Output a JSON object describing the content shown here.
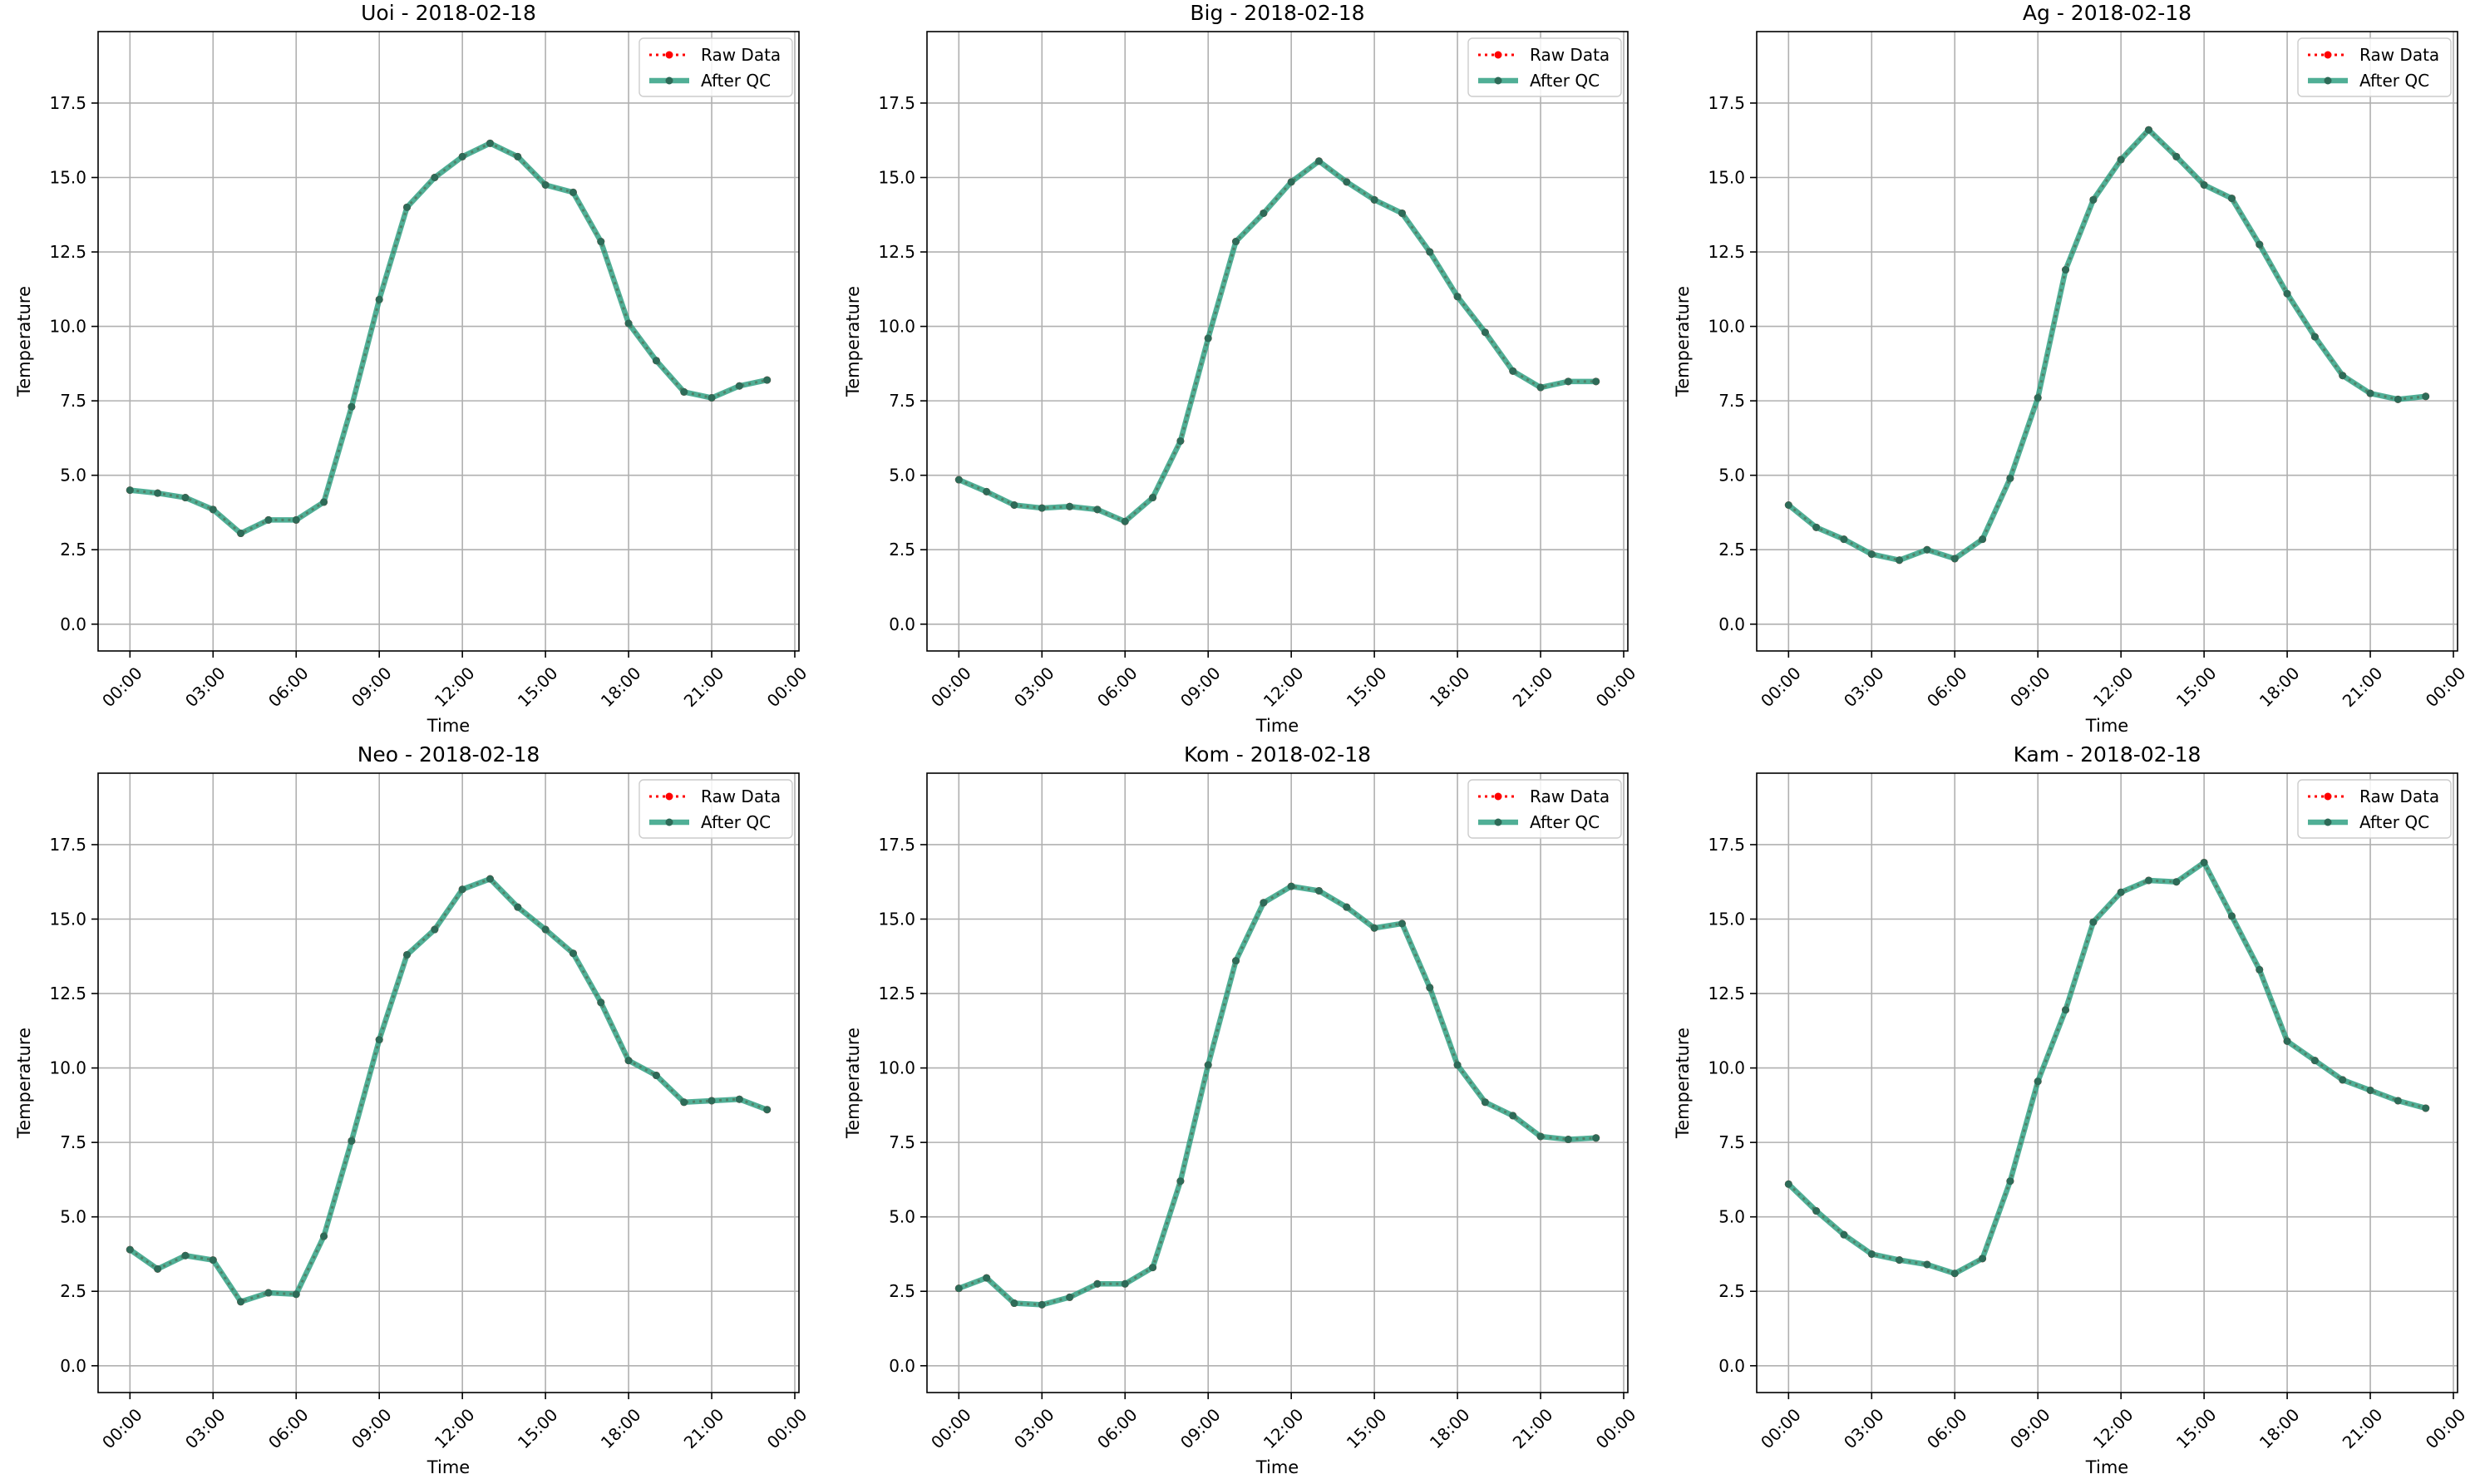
{
  "chart_data": [
    {
      "type": "line",
      "title": "Uoi - 2018-02-18",
      "xlabel": "Time",
      "ylabel": "Temperature",
      "x": [
        "00:00",
        "01:00",
        "02:00",
        "03:00",
        "04:00",
        "05:00",
        "06:00",
        "07:00",
        "08:00",
        "09:00",
        "10:00",
        "11:00",
        "12:00",
        "13:00",
        "14:00",
        "15:00",
        "16:00",
        "17:00",
        "18:00",
        "19:00",
        "20:00",
        "21:00",
        "22:00",
        "23:00"
      ],
      "x_ticks": [
        "00:00",
        "03:00",
        "06:00",
        "09:00",
        "12:00",
        "15:00",
        "18:00",
        "21:00",
        "00:00"
      ],
      "ylim": [
        -0.9,
        19.9
      ],
      "y_ticks": [
        "0.0",
        "2.5",
        "5.0",
        "7.5",
        "10.0",
        "12.5",
        "15.0",
        "17.5"
      ],
      "grid": true,
      "legend_position": "top-right",
      "series": [
        {
          "name": "Raw Data",
          "color": "#ff0000",
          "values": [
            4.5,
            4.4,
            4.25,
            3.85,
            3.05,
            3.5,
            3.5,
            4.1,
            7.3,
            10.9,
            14.0,
            15.0,
            15.7,
            16.15,
            15.7,
            14.75,
            14.5,
            12.85,
            10.1,
            8.85,
            7.8,
            7.6,
            8.0,
            8.2
          ]
        },
        {
          "name": "After QC",
          "color": "#2a9d7f",
          "values": [
            4.5,
            4.4,
            4.25,
            3.85,
            3.05,
            3.5,
            3.5,
            4.1,
            7.3,
            10.9,
            14.0,
            15.0,
            15.7,
            16.15,
            15.7,
            14.75,
            14.5,
            12.85,
            10.1,
            8.85,
            7.8,
            7.6,
            8.0,
            8.2
          ]
        }
      ]
    },
    {
      "type": "line",
      "title": "Big - 2018-02-18",
      "xlabel": "Time",
      "ylabel": "Temperature",
      "x": [
        "00:00",
        "01:00",
        "02:00",
        "03:00",
        "04:00",
        "05:00",
        "06:00",
        "07:00",
        "08:00",
        "09:00",
        "10:00",
        "11:00",
        "12:00",
        "13:00",
        "14:00",
        "15:00",
        "16:00",
        "17:00",
        "18:00",
        "19:00",
        "20:00",
        "21:00",
        "22:00",
        "23:00"
      ],
      "x_ticks": [
        "00:00",
        "03:00",
        "06:00",
        "09:00",
        "12:00",
        "15:00",
        "18:00",
        "21:00",
        "00:00"
      ],
      "ylim": [
        -0.9,
        19.9
      ],
      "y_ticks": [
        "0.0",
        "2.5",
        "5.0",
        "7.5",
        "10.0",
        "12.5",
        "15.0",
        "17.5"
      ],
      "grid": true,
      "legend_position": "top-right",
      "series": [
        {
          "name": "Raw Data",
          "color": "#ff0000",
          "values": [
            4.85,
            4.45,
            4.0,
            3.9,
            3.95,
            3.85,
            3.45,
            4.25,
            6.15,
            9.6,
            12.85,
            13.8,
            14.85,
            15.55,
            14.85,
            14.25,
            13.8,
            12.5,
            11.0,
            9.8,
            8.5,
            7.95,
            8.15,
            8.15
          ]
        },
        {
          "name": "After QC",
          "color": "#2a9d7f",
          "values": [
            4.85,
            4.45,
            4.0,
            3.9,
            3.95,
            3.85,
            3.45,
            4.25,
            6.15,
            9.6,
            12.85,
            13.8,
            14.85,
            15.55,
            14.85,
            14.25,
            13.8,
            12.5,
            11.0,
            9.8,
            8.5,
            7.95,
            8.15,
            8.15
          ]
        }
      ]
    },
    {
      "type": "line",
      "title": "Ag - 2018-02-18",
      "xlabel": "Time",
      "ylabel": "Temperature",
      "x": [
        "00:00",
        "01:00",
        "02:00",
        "03:00",
        "04:00",
        "05:00",
        "06:00",
        "07:00",
        "08:00",
        "09:00",
        "10:00",
        "11:00",
        "12:00",
        "13:00",
        "14:00",
        "15:00",
        "16:00",
        "17:00",
        "18:00",
        "19:00",
        "20:00",
        "21:00",
        "22:00",
        "23:00"
      ],
      "x_ticks": [
        "00:00",
        "03:00",
        "06:00",
        "09:00",
        "12:00",
        "15:00",
        "18:00",
        "21:00",
        "00:00"
      ],
      "ylim": [
        -0.9,
        19.9
      ],
      "y_ticks": [
        "0.0",
        "2.5",
        "5.0",
        "7.5",
        "10.0",
        "12.5",
        "15.0",
        "17.5"
      ],
      "grid": true,
      "legend_position": "top-right",
      "series": [
        {
          "name": "Raw Data",
          "color": "#ff0000",
          "values": [
            4.0,
            3.25,
            2.85,
            2.35,
            2.15,
            2.5,
            2.2,
            2.85,
            4.9,
            7.6,
            11.9,
            14.25,
            15.6,
            16.6,
            15.7,
            14.75,
            14.3,
            12.75,
            11.1,
            9.65,
            8.35,
            7.75,
            7.55,
            7.65
          ]
        },
        {
          "name": "After QC",
          "color": "#2a9d7f",
          "values": [
            4.0,
            3.25,
            2.85,
            2.35,
            2.15,
            2.5,
            2.2,
            2.85,
            4.9,
            7.6,
            11.9,
            14.25,
            15.6,
            16.6,
            15.7,
            14.75,
            14.3,
            12.75,
            11.1,
            9.65,
            8.35,
            7.75,
            7.55,
            7.65
          ]
        }
      ]
    },
    {
      "type": "line",
      "title": "Neo - 2018-02-18",
      "xlabel": "Time",
      "ylabel": "Temperature",
      "x": [
        "00:00",
        "01:00",
        "02:00",
        "03:00",
        "04:00",
        "05:00",
        "06:00",
        "07:00",
        "08:00",
        "09:00",
        "10:00",
        "11:00",
        "12:00",
        "13:00",
        "14:00",
        "15:00",
        "16:00",
        "17:00",
        "18:00",
        "19:00",
        "20:00",
        "21:00",
        "22:00",
        "23:00"
      ],
      "x_ticks": [
        "00:00",
        "03:00",
        "06:00",
        "09:00",
        "12:00",
        "15:00",
        "18:00",
        "21:00",
        "00:00"
      ],
      "ylim": [
        -0.9,
        19.9
      ],
      "y_ticks": [
        "0.0",
        "2.5",
        "5.0",
        "7.5",
        "10.0",
        "12.5",
        "15.0",
        "17.5"
      ],
      "grid": true,
      "legend_position": "top-right",
      "series": [
        {
          "name": "Raw Data",
          "color": "#ff0000",
          "values": [
            3.9,
            3.25,
            3.7,
            3.55,
            2.15,
            2.45,
            2.4,
            4.35,
            7.55,
            10.95,
            13.8,
            14.65,
            16.0,
            16.35,
            15.4,
            14.65,
            13.85,
            12.2,
            10.25,
            9.75,
            8.85,
            8.9,
            8.95,
            8.6
          ]
        },
        {
          "name": "After QC",
          "color": "#2a9d7f",
          "values": [
            3.9,
            3.25,
            3.7,
            3.55,
            2.15,
            2.45,
            2.4,
            4.35,
            7.55,
            10.95,
            13.8,
            14.65,
            16.0,
            16.35,
            15.4,
            14.65,
            13.85,
            12.2,
            10.25,
            9.75,
            8.85,
            8.9,
            8.95,
            8.6
          ]
        }
      ]
    },
    {
      "type": "line",
      "title": "Kom - 2018-02-18",
      "xlabel": "Time",
      "ylabel": "Temperature",
      "x": [
        "00:00",
        "01:00",
        "02:00",
        "03:00",
        "04:00",
        "05:00",
        "06:00",
        "07:00",
        "08:00",
        "09:00",
        "10:00",
        "11:00",
        "12:00",
        "13:00",
        "14:00",
        "15:00",
        "16:00",
        "17:00",
        "18:00",
        "19:00",
        "20:00",
        "21:00",
        "22:00",
        "23:00"
      ],
      "x_ticks": [
        "00:00",
        "03:00",
        "06:00",
        "09:00",
        "12:00",
        "15:00",
        "18:00",
        "21:00",
        "00:00"
      ],
      "ylim": [
        -0.9,
        19.9
      ],
      "y_ticks": [
        "0.0",
        "2.5",
        "5.0",
        "7.5",
        "10.0",
        "12.5",
        "15.0",
        "17.5"
      ],
      "grid": true,
      "legend_position": "top-right",
      "series": [
        {
          "name": "Raw Data",
          "color": "#ff0000",
          "values": [
            2.6,
            2.95,
            2.1,
            2.05,
            2.3,
            2.75,
            2.75,
            3.3,
            6.2,
            10.1,
            13.6,
            15.55,
            16.1,
            15.95,
            15.4,
            14.7,
            14.85,
            12.7,
            10.1,
            8.85,
            8.4,
            7.7,
            7.6,
            7.65
          ]
        },
        {
          "name": "After QC",
          "color": "#2a9d7f",
          "values": [
            2.6,
            2.95,
            2.1,
            2.05,
            2.3,
            2.75,
            2.75,
            3.3,
            6.2,
            10.1,
            13.6,
            15.55,
            16.1,
            15.95,
            15.4,
            14.7,
            14.85,
            12.7,
            10.1,
            8.85,
            8.4,
            7.7,
            7.6,
            7.65
          ]
        }
      ]
    },
    {
      "type": "line",
      "title": "Kam - 2018-02-18",
      "xlabel": "Time",
      "ylabel": "Temperature",
      "x": [
        "00:00",
        "01:00",
        "02:00",
        "03:00",
        "04:00",
        "05:00",
        "06:00",
        "07:00",
        "08:00",
        "09:00",
        "10:00",
        "11:00",
        "12:00",
        "13:00",
        "14:00",
        "15:00",
        "16:00",
        "17:00",
        "18:00",
        "19:00",
        "20:00",
        "21:00",
        "22:00",
        "23:00"
      ],
      "x_ticks": [
        "00:00",
        "03:00",
        "06:00",
        "09:00",
        "12:00",
        "15:00",
        "18:00",
        "21:00",
        "00:00"
      ],
      "ylim": [
        -0.9,
        19.9
      ],
      "y_ticks": [
        "0.0",
        "2.5",
        "5.0",
        "7.5",
        "10.0",
        "12.5",
        "15.0",
        "17.5"
      ],
      "grid": true,
      "legend_position": "top-right",
      "series": [
        {
          "name": "Raw Data",
          "color": "#ff0000",
          "values": [
            6.1,
            5.2,
            4.4,
            3.75,
            3.55,
            3.4,
            3.1,
            3.6,
            6.2,
            9.55,
            11.95,
            14.9,
            15.9,
            16.3,
            16.25,
            16.9,
            15.1,
            13.3,
            10.9,
            10.25,
            9.6,
            9.25,
            8.9,
            8.65
          ]
        },
        {
          "name": "After QC",
          "color": "#2a9d7f",
          "values": [
            6.1,
            5.2,
            4.4,
            3.75,
            3.55,
            3.4,
            3.1,
            3.6,
            6.2,
            9.55,
            11.95,
            14.9,
            15.9,
            16.3,
            16.25,
            16.9,
            15.1,
            13.3,
            10.9,
            10.25,
            9.6,
            9.25,
            8.9,
            8.65
          ]
        }
      ]
    }
  ]
}
